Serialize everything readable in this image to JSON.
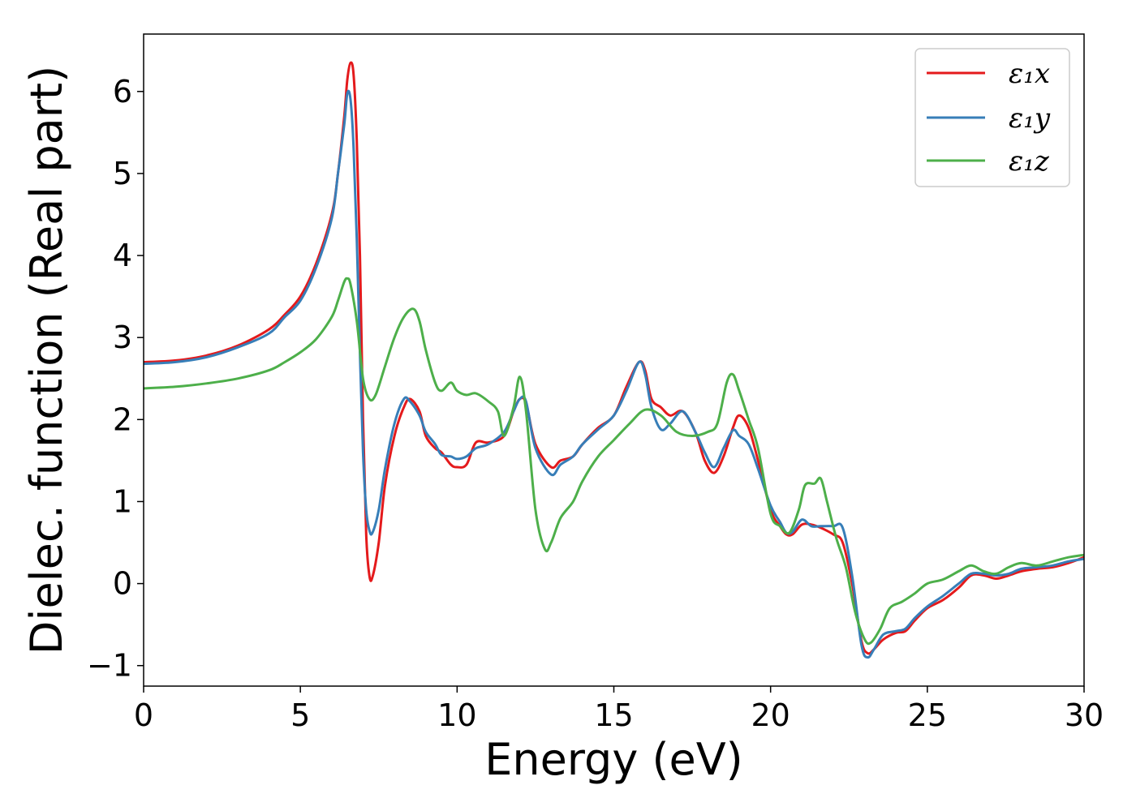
{
  "colors": {
    "x": "#e41a1c",
    "y": "#377eb8",
    "z": "#4daf4a"
  },
  "chart_data": {
    "type": "line",
    "xlabel": "Energy (eV)",
    "ylabel": "Dielec. function (Real part)",
    "xlim": [
      0,
      30
    ],
    "ylim": [
      -1.25,
      6.7
    ],
    "xticks": [
      0,
      5,
      10,
      15,
      20,
      25,
      30
    ],
    "xtick_labels": [
      "0",
      "5",
      "10",
      "15",
      "20",
      "25",
      "30"
    ],
    "yticks": [
      -1,
      0,
      1,
      2,
      3,
      4,
      5,
      6
    ],
    "ytick_labels": [
      "−1",
      "0",
      "1",
      "2",
      "3",
      "4",
      "5",
      "6"
    ],
    "grid": false,
    "legend_position": "top-right",
    "series": [
      {
        "name": "ε₁x",
        "color_key": "x",
        "points": [
          [
            0,
            2.7
          ],
          [
            1,
            2.72
          ],
          [
            2,
            2.78
          ],
          [
            3,
            2.9
          ],
          [
            4,
            3.1
          ],
          [
            4.5,
            3.28
          ],
          [
            5,
            3.5
          ],
          [
            5.5,
            3.9
          ],
          [
            6,
            4.5
          ],
          [
            6.2,
            5.0
          ],
          [
            6.4,
            5.7
          ],
          [
            6.5,
            6.15
          ],
          [
            6.6,
            6.35
          ],
          [
            6.7,
            6.2
          ],
          [
            6.8,
            5.4
          ],
          [
            6.9,
            4.0
          ],
          [
            7.0,
            2.0
          ],
          [
            7.1,
            0.6
          ],
          [
            7.2,
            0.1
          ],
          [
            7.3,
            0.08
          ],
          [
            7.5,
            0.5
          ],
          [
            7.7,
            1.2
          ],
          [
            8.0,
            1.8
          ],
          [
            8.3,
            2.15
          ],
          [
            8.5,
            2.25
          ],
          [
            8.8,
            2.1
          ],
          [
            9.0,
            1.8
          ],
          [
            9.3,
            1.65
          ],
          [
            9.5,
            1.6
          ],
          [
            9.8,
            1.45
          ],
          [
            10.0,
            1.42
          ],
          [
            10.3,
            1.45
          ],
          [
            10.6,
            1.72
          ],
          [
            11.0,
            1.72
          ],
          [
            11.5,
            1.8
          ],
          [
            11.8,
            2.1
          ],
          [
            12.0,
            2.25
          ],
          [
            12.2,
            2.2
          ],
          [
            12.5,
            1.7
          ],
          [
            13.0,
            1.42
          ],
          [
            13.3,
            1.5
          ],
          [
            13.7,
            1.55
          ],
          [
            14.0,
            1.7
          ],
          [
            14.5,
            1.9
          ],
          [
            15.0,
            2.05
          ],
          [
            15.4,
            2.4
          ],
          [
            15.8,
            2.7
          ],
          [
            16.0,
            2.6
          ],
          [
            16.2,
            2.25
          ],
          [
            16.5,
            2.15
          ],
          [
            16.8,
            2.05
          ],
          [
            17.2,
            2.1
          ],
          [
            17.6,
            1.85
          ],
          [
            17.9,
            1.5
          ],
          [
            18.2,
            1.35
          ],
          [
            18.5,
            1.55
          ],
          [
            18.8,
            1.9
          ],
          [
            19.0,
            2.05
          ],
          [
            19.3,
            1.9
          ],
          [
            19.6,
            1.5
          ],
          [
            20.0,
            0.9
          ],
          [
            20.3,
            0.7
          ],
          [
            20.5,
            0.6
          ],
          [
            20.7,
            0.6
          ],
          [
            21.0,
            0.72
          ],
          [
            21.3,
            0.72
          ],
          [
            21.6,
            0.68
          ],
          [
            22.0,
            0.6
          ],
          [
            22.3,
            0.5
          ],
          [
            22.6,
            0.0
          ],
          [
            22.9,
            -0.7
          ],
          [
            23.1,
            -0.85
          ],
          [
            23.3,
            -0.8
          ],
          [
            23.6,
            -0.68
          ],
          [
            24.0,
            -0.6
          ],
          [
            24.3,
            -0.58
          ],
          [
            24.6,
            -0.45
          ],
          [
            25.0,
            -0.3
          ],
          [
            25.5,
            -0.2
          ],
          [
            26.0,
            -0.05
          ],
          [
            26.4,
            0.1
          ],
          [
            26.8,
            0.1
          ],
          [
            27.2,
            0.06
          ],
          [
            27.6,
            0.1
          ],
          [
            28.0,
            0.15
          ],
          [
            28.5,
            0.18
          ],
          [
            29.0,
            0.2
          ],
          [
            29.5,
            0.25
          ],
          [
            30.0,
            0.32
          ]
        ]
      },
      {
        "name": "ε₁y",
        "color_key": "y",
        "points": [
          [
            0,
            2.68
          ],
          [
            1,
            2.7
          ],
          [
            2,
            2.76
          ],
          [
            3,
            2.88
          ],
          [
            4,
            3.05
          ],
          [
            4.5,
            3.25
          ],
          [
            5,
            3.45
          ],
          [
            5.5,
            3.85
          ],
          [
            6,
            4.45
          ],
          [
            6.2,
            5.0
          ],
          [
            6.4,
            5.6
          ],
          [
            6.5,
            5.98
          ],
          [
            6.6,
            5.9
          ],
          [
            6.7,
            5.3
          ],
          [
            6.8,
            4.2
          ],
          [
            6.9,
            2.8
          ],
          [
            7.0,
            1.6
          ],
          [
            7.1,
            0.9
          ],
          [
            7.2,
            0.65
          ],
          [
            7.3,
            0.62
          ],
          [
            7.5,
            0.9
          ],
          [
            7.7,
            1.4
          ],
          [
            8.0,
            1.95
          ],
          [
            8.3,
            2.25
          ],
          [
            8.5,
            2.22
          ],
          [
            8.8,
            2.05
          ],
          [
            9.0,
            1.85
          ],
          [
            9.3,
            1.7
          ],
          [
            9.5,
            1.57
          ],
          [
            9.8,
            1.55
          ],
          [
            10.0,
            1.52
          ],
          [
            10.3,
            1.55
          ],
          [
            10.6,
            1.65
          ],
          [
            11.0,
            1.7
          ],
          [
            11.5,
            1.85
          ],
          [
            11.8,
            2.1
          ],
          [
            12.0,
            2.25
          ],
          [
            12.2,
            2.22
          ],
          [
            12.5,
            1.65
          ],
          [
            13.0,
            1.33
          ],
          [
            13.3,
            1.45
          ],
          [
            13.7,
            1.55
          ],
          [
            14.0,
            1.7
          ],
          [
            14.5,
            1.88
          ],
          [
            15.0,
            2.05
          ],
          [
            15.4,
            2.35
          ],
          [
            15.8,
            2.7
          ],
          [
            16.0,
            2.55
          ],
          [
            16.2,
            2.15
          ],
          [
            16.5,
            1.88
          ],
          [
            16.8,
            1.95
          ],
          [
            17.2,
            2.1
          ],
          [
            17.6,
            1.85
          ],
          [
            17.9,
            1.6
          ],
          [
            18.2,
            1.42
          ],
          [
            18.5,
            1.65
          ],
          [
            18.8,
            1.87
          ],
          [
            19.0,
            1.8
          ],
          [
            19.3,
            1.7
          ],
          [
            19.6,
            1.4
          ],
          [
            20.0,
            0.95
          ],
          [
            20.3,
            0.75
          ],
          [
            20.5,
            0.62
          ],
          [
            20.7,
            0.63
          ],
          [
            21.0,
            0.78
          ],
          [
            21.3,
            0.7
          ],
          [
            21.6,
            0.7
          ],
          [
            22.0,
            0.7
          ],
          [
            22.3,
            0.68
          ],
          [
            22.6,
            0.1
          ],
          [
            22.9,
            -0.75
          ],
          [
            23.1,
            -0.9
          ],
          [
            23.3,
            -0.8
          ],
          [
            23.6,
            -0.62
          ],
          [
            24.0,
            -0.58
          ],
          [
            24.3,
            -0.55
          ],
          [
            24.6,
            -0.42
          ],
          [
            25.0,
            -0.28
          ],
          [
            25.5,
            -0.15
          ],
          [
            26.0,
            0.0
          ],
          [
            26.4,
            0.12
          ],
          [
            26.8,
            0.12
          ],
          [
            27.2,
            0.1
          ],
          [
            27.6,
            0.12
          ],
          [
            28.0,
            0.18
          ],
          [
            28.5,
            0.2
          ],
          [
            29.0,
            0.22
          ],
          [
            29.5,
            0.27
          ],
          [
            30.0,
            0.3
          ]
        ]
      },
      {
        "name": "ε₁z",
        "color_key": "z",
        "points": [
          [
            0,
            2.38
          ],
          [
            1,
            2.4
          ],
          [
            2,
            2.44
          ],
          [
            3,
            2.5
          ],
          [
            4,
            2.6
          ],
          [
            4.5,
            2.7
          ],
          [
            5,
            2.82
          ],
          [
            5.5,
            2.98
          ],
          [
            6,
            3.25
          ],
          [
            6.2,
            3.45
          ],
          [
            6.4,
            3.68
          ],
          [
            6.5,
            3.72
          ],
          [
            6.6,
            3.65
          ],
          [
            6.8,
            3.2
          ],
          [
            7.0,
            2.5
          ],
          [
            7.2,
            2.25
          ],
          [
            7.4,
            2.3
          ],
          [
            7.7,
            2.65
          ],
          [
            8.0,
            3.0
          ],
          [
            8.3,
            3.25
          ],
          [
            8.6,
            3.35
          ],
          [
            8.8,
            3.2
          ],
          [
            9.0,
            2.85
          ],
          [
            9.3,
            2.45
          ],
          [
            9.5,
            2.35
          ],
          [
            9.8,
            2.45
          ],
          [
            10.0,
            2.35
          ],
          [
            10.3,
            2.3
          ],
          [
            10.6,
            2.32
          ],
          [
            11.0,
            2.22
          ],
          [
            11.3,
            2.1
          ],
          [
            11.5,
            1.8
          ],
          [
            11.8,
            2.15
          ],
          [
            12.0,
            2.52
          ],
          [
            12.2,
            2.1
          ],
          [
            12.5,
            0.9
          ],
          [
            12.8,
            0.42
          ],
          [
            13.0,
            0.5
          ],
          [
            13.3,
            0.8
          ],
          [
            13.7,
            1.0
          ],
          [
            14.0,
            1.25
          ],
          [
            14.5,
            1.55
          ],
          [
            15.0,
            1.75
          ],
          [
            15.5,
            1.95
          ],
          [
            16.0,
            2.12
          ],
          [
            16.5,
            2.05
          ],
          [
            17.0,
            1.85
          ],
          [
            17.5,
            1.8
          ],
          [
            18.0,
            1.85
          ],
          [
            18.3,
            1.95
          ],
          [
            18.6,
            2.45
          ],
          [
            18.8,
            2.55
          ],
          [
            19.0,
            2.35
          ],
          [
            19.3,
            2.0
          ],
          [
            19.6,
            1.65
          ],
          [
            20.0,
            0.85
          ],
          [
            20.3,
            0.7
          ],
          [
            20.6,
            0.62
          ],
          [
            20.9,
            0.9
          ],
          [
            21.1,
            1.2
          ],
          [
            21.4,
            1.22
          ],
          [
            21.6,
            1.28
          ],
          [
            21.8,
            1.0
          ],
          [
            22.1,
            0.55
          ],
          [
            22.4,
            0.2
          ],
          [
            22.7,
            -0.35
          ],
          [
            23.0,
            -0.68
          ],
          [
            23.2,
            -0.72
          ],
          [
            23.5,
            -0.55
          ],
          [
            23.8,
            -0.3
          ],
          [
            24.2,
            -0.22
          ],
          [
            24.6,
            -0.12
          ],
          [
            25.0,
            0.0
          ],
          [
            25.5,
            0.05
          ],
          [
            26.0,
            0.15
          ],
          [
            26.4,
            0.22
          ],
          [
            26.8,
            0.15
          ],
          [
            27.2,
            0.12
          ],
          [
            27.6,
            0.2
          ],
          [
            28.0,
            0.25
          ],
          [
            28.5,
            0.22
          ],
          [
            29.0,
            0.27
          ],
          [
            29.5,
            0.32
          ],
          [
            30.0,
            0.35
          ]
        ]
      }
    ]
  }
}
